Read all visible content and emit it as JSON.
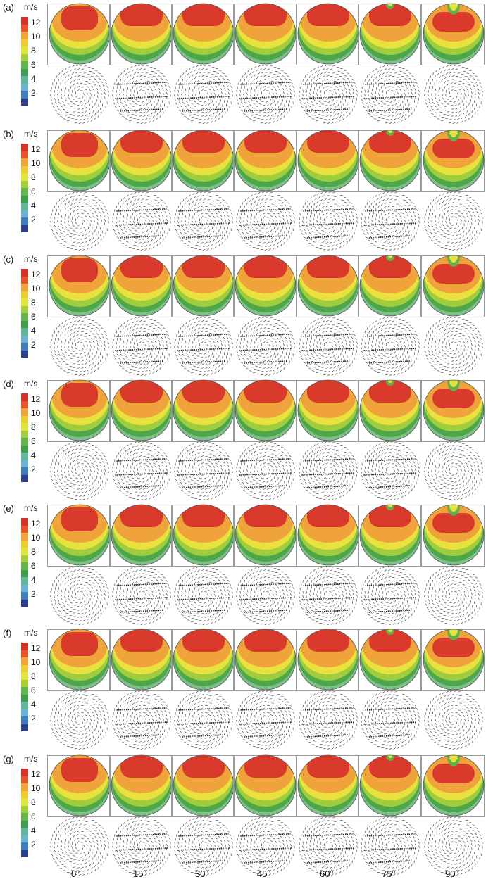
{
  "colorbar": {
    "unit": "m/s",
    "ticks": [
      "12",
      "10",
      "8",
      "6",
      "4",
      "2"
    ],
    "colors": [
      "#d8302a",
      "#e8542a",
      "#f2a33a",
      "#eecb30",
      "#dfe53a",
      "#a3cf3c",
      "#63b64a",
      "#3f9e4d",
      "#5fb89a",
      "#6ab3d1",
      "#3f7cc0",
      "#2b3f8f"
    ]
  },
  "panels": [
    {
      "label": "(a)"
    },
    {
      "label": "(b)"
    },
    {
      "label": "(c)"
    },
    {
      "label": "(d)"
    },
    {
      "label": "(e)"
    },
    {
      "label": "(f)"
    },
    {
      "label": "(g)"
    }
  ],
  "angles": [
    {
      "value": "0",
      "deg": "o"
    },
    {
      "value": "15",
      "deg": "o"
    },
    {
      "value": "30",
      "deg": "o"
    },
    {
      "value": "45",
      "deg": "o"
    },
    {
      "value": "60",
      "deg": "o"
    },
    {
      "value": "75",
      "deg": "o"
    },
    {
      "value": "90",
      "deg": "o"
    }
  ],
  "contour_colors": {
    "core": "#d93a2b",
    "band1": "#f0a33a",
    "band2": "#e9e13e",
    "band3": "#9fcd3d",
    "band4": "#4ea64a",
    "notch": "#5fb24a",
    "rim": "#7fbf8a"
  }
}
